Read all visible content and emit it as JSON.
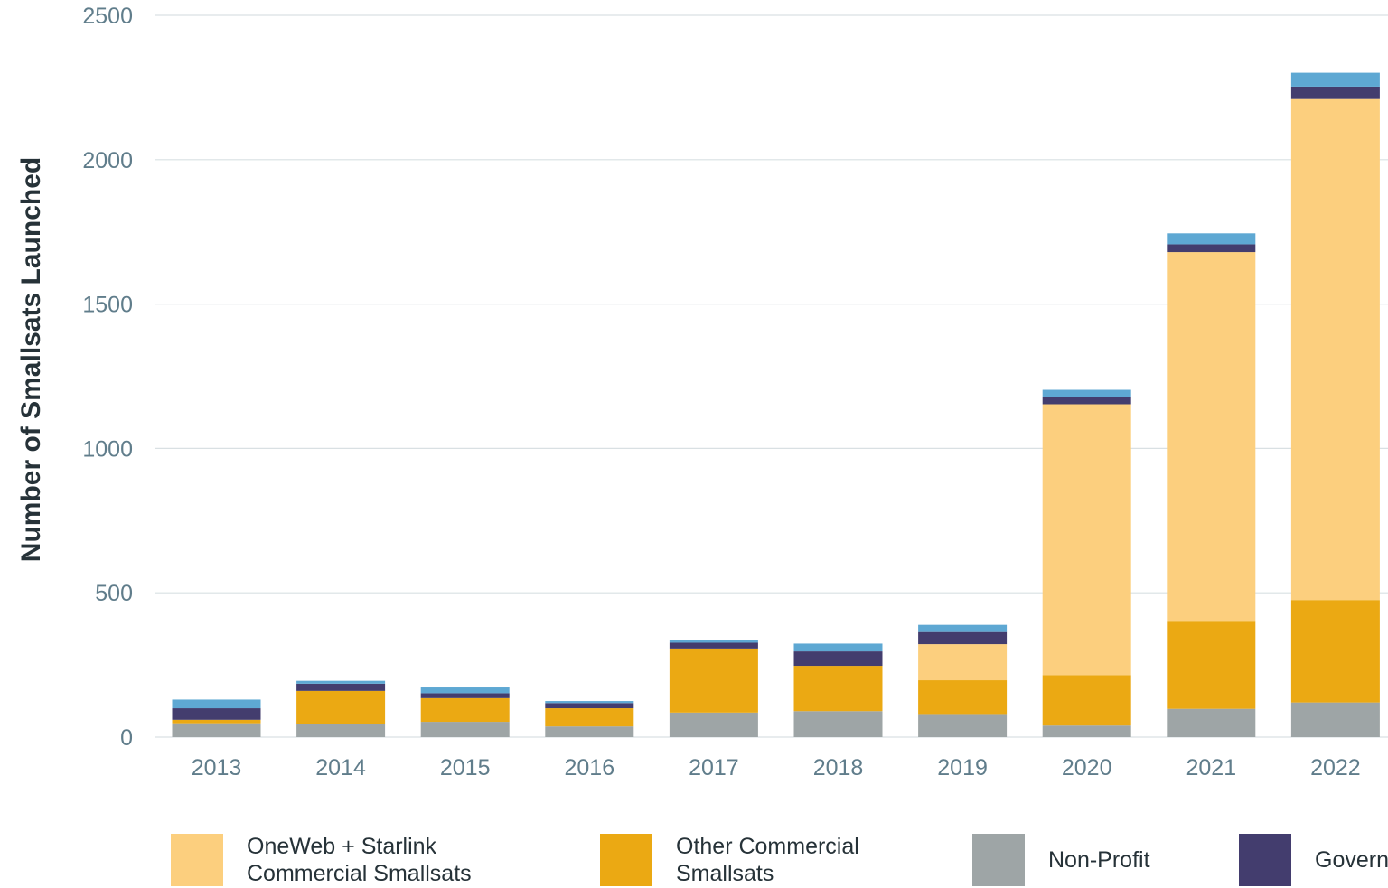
{
  "chart_data": {
    "type": "bar",
    "stacked": true,
    "title": "",
    "xlabel": "",
    "ylabel": "Number of Smallsats Launched",
    "ylim": [
      0,
      2500
    ],
    "yticks": [
      0,
      500,
      1000,
      1500,
      2000,
      2500
    ],
    "grid": true,
    "legend_position": "bottom",
    "categories": [
      "2013",
      "2014",
      "2015",
      "2016",
      "2017",
      "2018",
      "2019",
      "2020",
      "2021",
      "2022"
    ],
    "series": [
      {
        "name": "Non-Profit",
        "color": "#9ea5a6",
        "values": [
          48,
          45,
          53,
          37,
          85,
          90,
          80,
          40,
          98,
          120
        ]
      },
      {
        "name": "Other Commercial Smallsats",
        "color": "#eba913",
        "values": [
          12,
          115,
          82,
          63,
          222,
          157,
          117,
          175,
          305,
          355
        ]
      },
      {
        "name": "OneWeb + Starlink Commercial Smallsats",
        "color": "#fccf7e",
        "values": [
          0,
          0,
          0,
          0,
          0,
          0,
          125,
          938,
          1277,
          1735
        ]
      },
      {
        "name": "Government",
        "color": "#433d6e",
        "values": [
          40,
          25,
          17,
          18,
          20,
          50,
          42,
          25,
          27,
          43
        ]
      },
      {
        "name": "",
        "color": "#5ea8d3",
        "values": [
          30,
          10,
          20,
          7,
          10,
          27,
          25,
          25,
          38,
          48
        ]
      }
    ]
  },
  "legend": [
    {
      "label": "OneWeb + Starlink\nCommercial Smallsats",
      "color": "#fccf7e"
    },
    {
      "label": "Other Commercial\nSmallsats",
      "color": "#eba913"
    },
    {
      "label": "Non-Profit",
      "color": "#9ea5a6"
    },
    {
      "label": "Govern",
      "color": "#433d6e"
    }
  ]
}
